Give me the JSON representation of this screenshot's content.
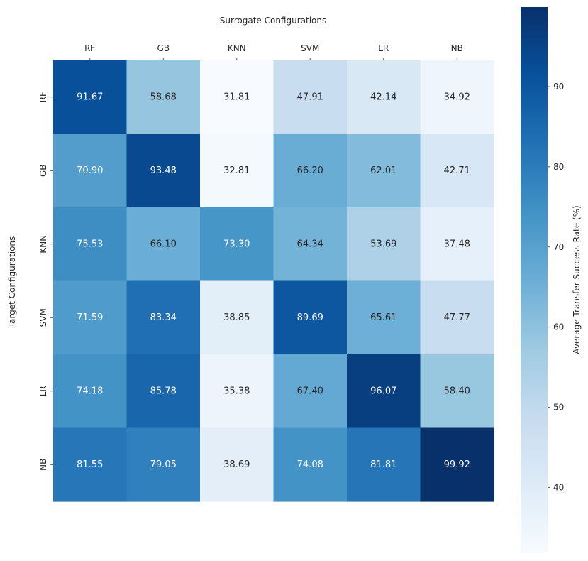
{
  "chart_data": {
    "type": "heatmap",
    "title": "",
    "xlabel": "Surrogate Configurations",
    "ylabel": "Target Configurations",
    "x_categories": [
      "RF",
      "GB",
      "KNN",
      "SVM",
      "LR",
      "NB"
    ],
    "y_categories": [
      "RF",
      "GB",
      "KNN",
      "SVM",
      "LR",
      "NB"
    ],
    "values": [
      [
        91.67,
        58.68,
        31.81,
        47.91,
        42.14,
        34.92
      ],
      [
        70.9,
        93.48,
        32.81,
        66.2,
        62.01,
        42.71
      ],
      [
        75.53,
        66.1,
        73.3,
        64.34,
        53.69,
        37.48
      ],
      [
        71.59,
        83.34,
        38.85,
        89.69,
        65.61,
        47.77
      ],
      [
        74.18,
        85.78,
        35.38,
        67.4,
        96.07,
        58.4
      ],
      [
        81.55,
        79.05,
        38.69,
        74.08,
        81.81,
        99.92
      ]
    ],
    "value_labels": [
      [
        "91.67",
        "58.68",
        "31.81",
        "47.91",
        "42.14",
        "34.92"
      ],
      [
        "70.90",
        "93.48",
        "32.81",
        "66.20",
        "62.01",
        "42.71"
      ],
      [
        "75.53",
        "66.10",
        "73.30",
        "64.34",
        "53.69",
        "37.48"
      ],
      [
        "71.59",
        "83.34",
        "38.85",
        "89.69",
        "65.61",
        "47.77"
      ],
      [
        "74.18",
        "85.78",
        "35.38",
        "67.40",
        "96.07",
        "58.40"
      ],
      [
        "81.55",
        "79.05",
        "38.69",
        "74.08",
        "81.81",
        "99.92"
      ]
    ],
    "colorbar": {
      "label": "Average Transfer Success Rate (%)",
      "range": [
        31.81,
        99.92
      ],
      "ticks": [
        40,
        50,
        60,
        70,
        80,
        90
      ],
      "tick_labels": [
        "40",
        "50",
        "60",
        "70",
        "80",
        "90"
      ],
      "colormap": "Blues",
      "stops": [
        "#f7fbff",
        "#deebf7",
        "#c6dbef",
        "#9ecae1",
        "#6baed6",
        "#4292c6",
        "#2171b5",
        "#08519c",
        "#08306b"
      ]
    },
    "x_axis_position": "top",
    "grid": false,
    "text_color_light": "#ffffff",
    "text_color_dark": "#262626"
  }
}
